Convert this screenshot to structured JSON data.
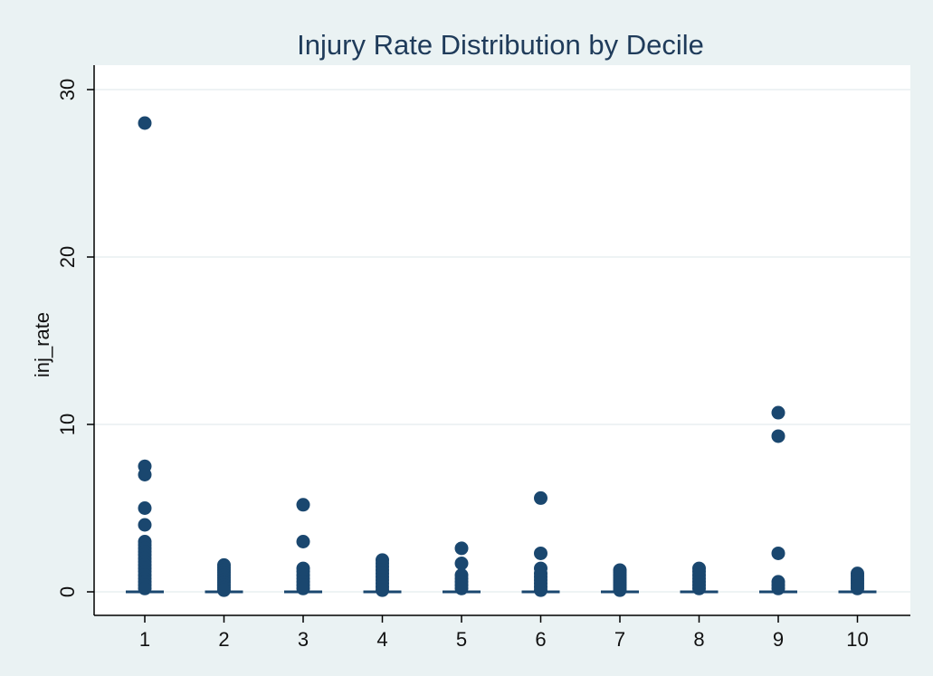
{
  "chart_data": {
    "type": "box",
    "title": "Injury Rate Distribution by Decile",
    "xlabel": "",
    "ylabel": "inj_rate",
    "categories": [
      "1",
      "2",
      "3",
      "4",
      "5",
      "6",
      "7",
      "8",
      "9",
      "10"
    ],
    "yticks": [
      "0",
      "10",
      "20",
      "30"
    ],
    "ylim": [
      0,
      31
    ],
    "grid": true,
    "legend": "none",
    "marker_color": "#1a476f",
    "plot_background": "#ffffff",
    "figure_background": "#eaf2f3",
    "boxes": [
      {
        "category": "1",
        "median": 0,
        "q1": 0,
        "q3": 0,
        "outliers": [
          28.0,
          7.5,
          7.0,
          5.0,
          4.0,
          3.0,
          2.8,
          2.6,
          2.4,
          2.2,
          2.0,
          1.8,
          1.6,
          1.4,
          1.2,
          1.0,
          0.8,
          0.6,
          0.4,
          0.2
        ]
      },
      {
        "category": "2",
        "median": 0,
        "q1": 0,
        "q3": 0,
        "outliers": [
          1.6,
          1.45,
          1.3,
          1.15,
          1.0,
          0.85,
          0.7,
          0.55,
          0.4,
          0.25,
          0.1
        ]
      },
      {
        "category": "3",
        "median": 0,
        "q1": 0,
        "q3": 0,
        "outliers": [
          5.2,
          3.0,
          1.4,
          1.2,
          1.0,
          0.8,
          0.6,
          0.4,
          0.2
        ]
      },
      {
        "category": "4",
        "median": 0,
        "q1": 0,
        "q3": 0,
        "outliers": [
          1.9,
          1.7,
          1.5,
          1.3,
          1.1,
          0.9,
          0.7,
          0.5,
          0.3,
          0.1
        ]
      },
      {
        "category": "5",
        "median": 0,
        "q1": 0,
        "q3": 0,
        "outliers": [
          2.6,
          1.7,
          1.0,
          0.8,
          0.6,
          0.4,
          0.2
        ]
      },
      {
        "category": "6",
        "median": 0,
        "q1": 0,
        "q3": 0,
        "outliers": [
          5.6,
          2.3,
          1.4,
          1.1,
          0.9,
          0.7,
          0.5,
          0.3,
          0.1
        ]
      },
      {
        "category": "7",
        "median": 0,
        "q1": 0,
        "q3": 0,
        "outliers": [
          1.3,
          1.15,
          1.0,
          0.85,
          0.7,
          0.55,
          0.4,
          0.25,
          0.1
        ]
      },
      {
        "category": "8",
        "median": 0,
        "q1": 0,
        "q3": 0,
        "outliers": [
          1.4,
          1.2,
          1.0,
          0.8,
          0.6,
          0.4,
          0.2
        ]
      },
      {
        "category": "9",
        "median": 0,
        "q1": 0,
        "q3": 0,
        "outliers": [
          10.7,
          9.3,
          2.3,
          0.6,
          0.4,
          0.2
        ]
      },
      {
        "category": "10",
        "median": 0,
        "q1": 0,
        "q3": 0,
        "outliers": [
          1.1,
          0.95,
          0.8,
          0.65,
          0.5,
          0.35,
          0.2
        ]
      }
    ]
  }
}
